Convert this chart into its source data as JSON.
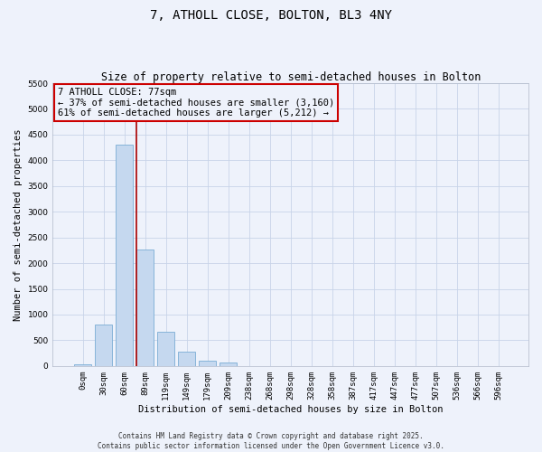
{
  "title": "7, ATHOLL CLOSE, BOLTON, BL3 4NY",
  "subtitle": "Size of property relative to semi-detached houses in Bolton",
  "xlabel": "Distribution of semi-detached houses by size in Bolton",
  "ylabel": "Number of semi-detached properties",
  "bar_labels": [
    "0sqm",
    "30sqm",
    "60sqm",
    "89sqm",
    "119sqm",
    "149sqm",
    "179sqm",
    "209sqm",
    "238sqm",
    "268sqm",
    "298sqm",
    "328sqm",
    "358sqm",
    "387sqm",
    "417sqm",
    "447sqm",
    "477sqm",
    "507sqm",
    "536sqm",
    "566sqm",
    "596sqm"
  ],
  "bar_values": [
    30,
    810,
    4310,
    2270,
    660,
    270,
    100,
    70,
    5,
    5,
    5,
    5,
    5,
    5,
    5,
    5,
    5,
    5,
    5,
    5,
    5
  ],
  "bar_color": "#c5d8ef",
  "bar_edge_color": "#7aadd4",
  "grid_color": "#c8d4e8",
  "property_line_x": 2.57,
  "property_line_color": "#aa0000",
  "annotation_text": "7 ATHOLL CLOSE: 77sqm\n← 37% of semi-detached houses are smaller (3,160)\n61% of semi-detached houses are larger (5,212) →",
  "annotation_box_color": "#cc0000",
  "ylim": [
    0,
    5500
  ],
  "yticks": [
    0,
    500,
    1000,
    1500,
    2000,
    2500,
    3000,
    3500,
    4000,
    4500,
    5000,
    5500
  ],
  "background_color": "#eef2fb",
  "footer_text": "Contains HM Land Registry data © Crown copyright and database right 2025.\nContains public sector information licensed under the Open Government Licence v3.0.",
  "title_fontsize": 10,
  "subtitle_fontsize": 8.5,
  "axis_label_fontsize": 7.5,
  "tick_fontsize": 6.5,
  "annot_fontsize": 7.5
}
